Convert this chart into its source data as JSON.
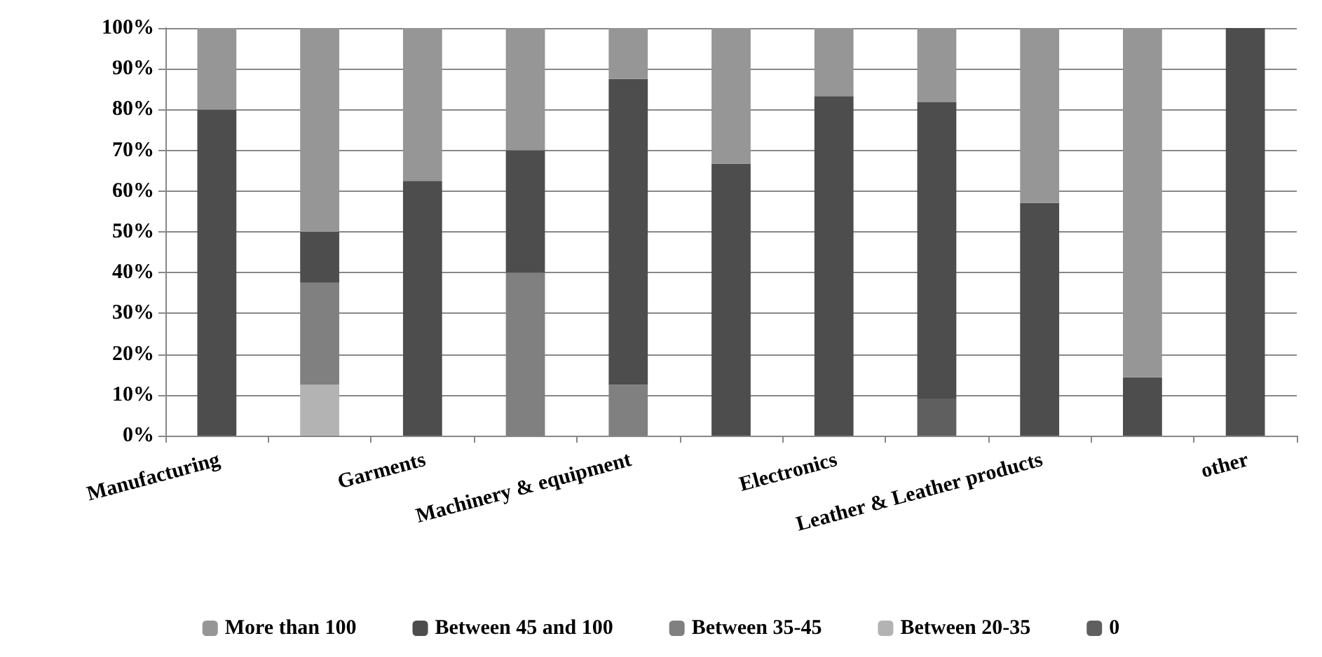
{
  "chart_data": {
    "type": "bar",
    "stacked": true,
    "categories": [
      "Manufacturing",
      null,
      "Garments",
      null,
      "Machinery & equipment",
      null,
      "Electronics",
      null,
      "Leather & Leather products",
      null,
      "other"
    ],
    "series": [
      {
        "name": "0",
        "color": "#5f5f5f",
        "values": [
          0,
          0,
          0,
          0,
          0,
          0,
          0,
          9.1,
          0,
          0,
          0
        ]
      },
      {
        "name": "Between 20-35",
        "color": "#b3b3b3",
        "values": [
          0,
          12.5,
          0,
          0,
          0,
          0,
          0,
          0,
          0,
          0,
          0
        ]
      },
      {
        "name": "Between 35-45",
        "color": "#808080",
        "values": [
          0,
          25,
          0,
          40,
          12.5,
          0,
          0,
          0,
          0,
          0,
          0
        ]
      },
      {
        "name": "Between 45 and 100",
        "color": "#4d4d4d",
        "values": [
          80,
          12.5,
          62.5,
          30,
          75,
          66.7,
          83.3,
          72.7,
          57.1,
          14.3,
          100
        ]
      },
      {
        "name": "More than 100",
        "color": "#969696",
        "values": [
          20,
          50,
          37.5,
          30,
          12.5,
          33.3,
          16.7,
          18.2,
          42.9,
          85.7,
          0
        ]
      }
    ],
    "ylim": [
      0,
      100
    ],
    "yticks": [
      {
        "value": 0,
        "label": "0%"
      },
      {
        "value": 10,
        "label": "10%"
      },
      {
        "value": 20,
        "label": "20%"
      },
      {
        "value": 30,
        "label": "30%"
      },
      {
        "value": 40,
        "label": "40%"
      },
      {
        "value": 50,
        "label": "50%"
      },
      {
        "value": 60,
        "label": "60%"
      },
      {
        "value": 70,
        "label": "70%"
      },
      {
        "value": 80,
        "label": "80%"
      },
      {
        "value": 90,
        "label": "90%"
      },
      {
        "value": 100,
        "label": "100%"
      }
    ],
    "grid": "y",
    "legend": "bottom"
  }
}
